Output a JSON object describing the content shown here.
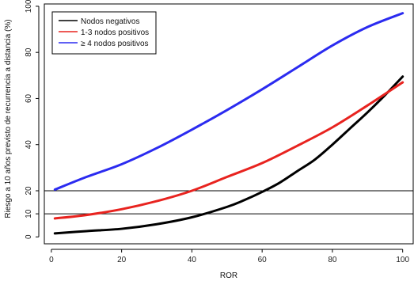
{
  "chart_data": {
    "type": "line",
    "xlabel": "ROR",
    "ylabel": "Riesgo a 10 años previsto de recurrencia a distancia (%)",
    "xlim": [
      -2,
      103
    ],
    "ylim": [
      -3,
      101
    ],
    "xticks": [
      0,
      20,
      40,
      60,
      80,
      100
    ],
    "yticks": [
      0,
      10,
      20,
      40,
      60,
      80,
      100
    ],
    "reference_lines_y": [
      10,
      20
    ],
    "grid": false,
    "legend_position": "top-left",
    "series": [
      {
        "name": "Nodos negativos",
        "color": "#000000",
        "x": [
          1,
          10,
          20,
          30,
          40,
          50,
          55,
          60,
          65,
          70,
          75,
          80,
          85,
          90,
          95,
          100
        ],
        "y": [
          1.5,
          2.5,
          3.5,
          5.5,
          8.5,
          13,
          16,
          19.5,
          23.5,
          28.5,
          33.5,
          40,
          47,
          54,
          61.5,
          69.5
        ]
      },
      {
        "name": "1-3 nodos positivos",
        "color": "#e8231f",
        "x": [
          1,
          10,
          20,
          30,
          40,
          50,
          60,
          70,
          80,
          90,
          100
        ],
        "y": [
          8,
          9.5,
          12,
          15.5,
          20,
          26,
          32,
          39.5,
          47.5,
          57,
          67
        ]
      },
      {
        "name": "≥ 4 nodos positivos",
        "color": "#2b2bf0",
        "x": [
          1,
          10,
          20,
          30,
          40,
          50,
          60,
          70,
          80,
          90,
          100
        ],
        "y": [
          20.5,
          26,
          31.5,
          38.5,
          46.5,
          55,
          64,
          73.5,
          83,
          91,
          97
        ]
      }
    ]
  }
}
